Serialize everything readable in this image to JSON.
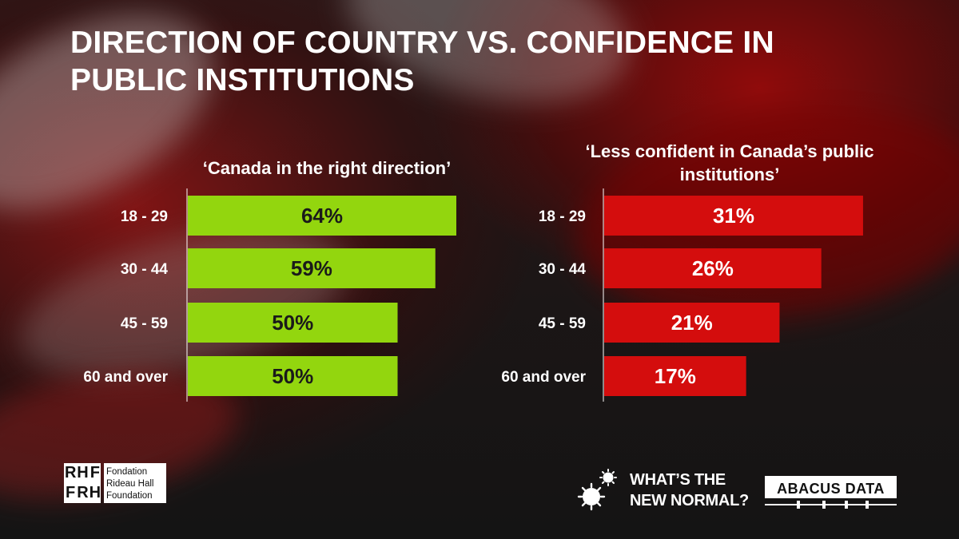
{
  "title": "DIRECTION OF COUNTRY VS. CONFIDENCE IN PUBLIC INSTITUTIONS",
  "colors": {
    "green_bar": "#93d60e",
    "red_bar": "#d40d0d",
    "green_label_text": "#1a1a1a",
    "red_label_text": "#ffffff"
  },
  "chart_data": [
    {
      "type": "bar",
      "orientation": "horizontal",
      "title": "‘Canada in the right direction’",
      "categories": [
        "18 - 29",
        "30 - 44",
        "45 - 59",
        "60 and over"
      ],
      "values": [
        64,
        59,
        50,
        50
      ],
      "value_labels": [
        "64%",
        "59%",
        "50%",
        "50%"
      ],
      "unit": "%",
      "xlim": [
        0,
        100
      ],
      "color": "#93d60e",
      "grid": false,
      "legend": "none"
    },
    {
      "type": "bar",
      "orientation": "horizontal",
      "title": "‘Less confident in Canada’s public institutions’",
      "categories": [
        "18 - 29",
        "30 - 44",
        "45 - 59",
        "60 and over"
      ],
      "values": [
        31,
        26,
        21,
        17
      ],
      "value_labels": [
        "31%",
        "26%",
        "21%",
        "17%"
      ],
      "unit": "%",
      "xlim": [
        0,
        50
      ],
      "color": "#d40d0d",
      "grid": false,
      "legend": "none"
    }
  ],
  "footer": {
    "rhf_logo_letters": "RHFFRH",
    "rhf_lines": [
      "Fondation",
      "Rideau Hall",
      "Foundation"
    ],
    "campaign_icon": "virus-icon",
    "campaign_lines": [
      "WHAT’S THE",
      "NEW NORMAL?"
    ],
    "abacus_logo": "ABACUS DATA"
  }
}
